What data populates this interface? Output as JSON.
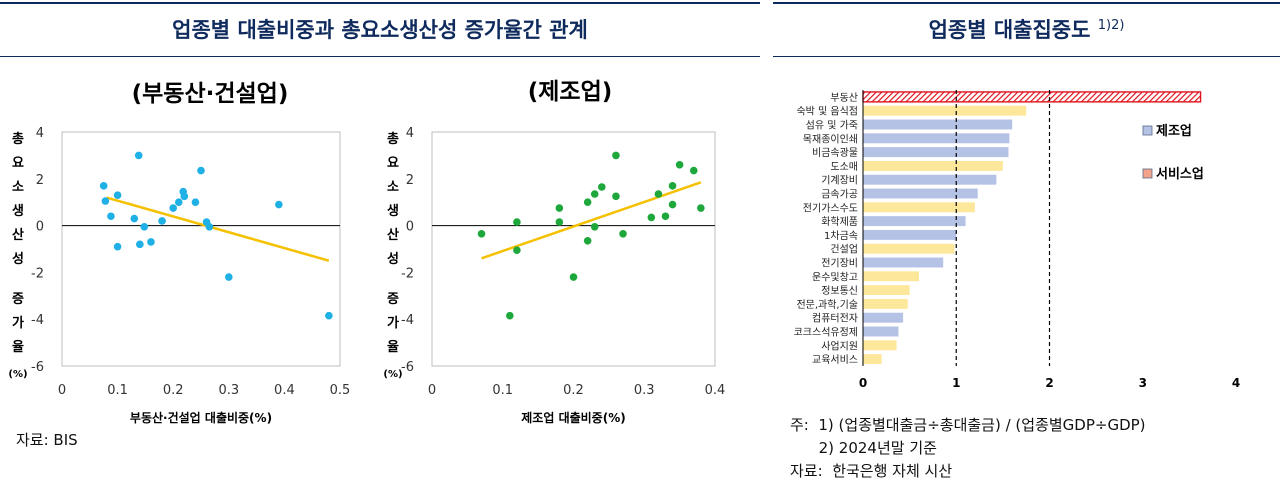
{
  "left": {
    "title": "업종별 대출비중과 총요소생산성 증가율간 관계",
    "source": "자료: BIS"
  },
  "right": {
    "title": "업종별 대출집중도",
    "title_sup": "1)2)",
    "notes": [
      "주:  1) (업종별대출금÷총대출금) / (업종별GDP÷GDP)",
      "      2) 2024년말 기준",
      "자료:  한국은행 자체 시산"
    ]
  },
  "chart_data": [
    {
      "type": "scatter",
      "title": "(부동산·건설업)",
      "xlabel": "부동산·건설업 대출비중(%)",
      "ylabel_chars": [
        "총",
        "요",
        "소",
        "생",
        "산",
        "성",
        "",
        "증",
        "가",
        "율"
      ],
      "ylabel_unit": "(%)",
      "xlim": [
        0,
        0.5
      ],
      "ylim": [
        -6,
        4
      ],
      "xticks": [
        0,
        0.1,
        0.2,
        0.3,
        0.4,
        0.5
      ],
      "xtick_labels": [
        "0",
        "0.1",
        "0.2",
        "0.3",
        "0.4",
        "0.5"
      ],
      "yticks": [
        4,
        2,
        0,
        -2,
        -4,
        -6
      ],
      "ytick_labels": [
        "4",
        "2",
        "0",
        "-2",
        "-4",
        "-6"
      ],
      "point_color": "#1fb0e6",
      "trend_color": "#f5c000",
      "trend": [
        [
          0.08,
          1.2
        ],
        [
          0.48,
          -1.5
        ]
      ],
      "points": [
        [
          0.075,
          1.7
        ],
        [
          0.078,
          1.05
        ],
        [
          0.088,
          0.4
        ],
        [
          0.1,
          1.3
        ],
        [
          0.1,
          -0.9
        ],
        [
          0.13,
          0.3
        ],
        [
          0.138,
          3.0
        ],
        [
          0.14,
          -0.8
        ],
        [
          0.148,
          -0.05
        ],
        [
          0.16,
          -0.7
        ],
        [
          0.18,
          0.2
        ],
        [
          0.2,
          0.75
        ],
        [
          0.21,
          1.0
        ],
        [
          0.218,
          1.45
        ],
        [
          0.22,
          1.25
        ],
        [
          0.24,
          1.0
        ],
        [
          0.25,
          2.35
        ],
        [
          0.26,
          0.15
        ],
        [
          0.265,
          -0.05
        ],
        [
          0.3,
          -2.2
        ],
        [
          0.39,
          0.9
        ],
        [
          0.48,
          -3.85
        ]
      ]
    },
    {
      "type": "scatter",
      "title": "(제조업)",
      "xlabel": "제조업 대출비중(%)",
      "ylabel_chars": [
        "총",
        "요",
        "소",
        "생",
        "산",
        "성",
        "",
        "증",
        "가",
        "율"
      ],
      "ylabel_unit": "(%)",
      "xlim": [
        0,
        0.4
      ],
      "ylim": [
        -6,
        4
      ],
      "xticks": [
        0,
        0.1,
        0.2,
        0.3,
        0.4
      ],
      "xtick_labels": [
        "0",
        "0.1",
        "0.2",
        "0.3",
        "0.4"
      ],
      "yticks": [
        4,
        2,
        0,
        -2,
        -4,
        -6
      ],
      "ytick_labels": [
        "4",
        "2",
        "0",
        "-2",
        "-4",
        "-6"
      ],
      "point_color": "#1ea83c",
      "trend_color": "#f5c000",
      "trend": [
        [
          0.07,
          -1.4
        ],
        [
          0.38,
          1.85
        ]
      ],
      "points": [
        [
          0.07,
          -0.35
        ],
        [
          0.11,
          -3.85
        ],
        [
          0.12,
          0.15
        ],
        [
          0.12,
          -1.05
        ],
        [
          0.18,
          0.75
        ],
        [
          0.18,
          0.15
        ],
        [
          0.2,
          -2.2
        ],
        [
          0.22,
          1.0
        ],
        [
          0.22,
          -0.65
        ],
        [
          0.23,
          1.35
        ],
        [
          0.24,
          1.65
        ],
        [
          0.23,
          -0.05
        ],
        [
          0.26,
          3.0
        ],
        [
          0.26,
          1.25
        ],
        [
          0.27,
          -0.35
        ],
        [
          0.31,
          0.35
        ],
        [
          0.32,
          1.35
        ],
        [
          0.33,
          0.4
        ],
        [
          0.34,
          1.7
        ],
        [
          0.34,
          0.9
        ],
        [
          0.35,
          2.6
        ],
        [
          0.37,
          2.35
        ],
        [
          0.38,
          0.75
        ]
      ]
    },
    {
      "type": "bar",
      "orientation": "horizontal",
      "categories": [
        "부동산",
        "숙박 및 음식점",
        "섬유 및 가죽",
        "목재종이인쇄",
        "비금속광물",
        "도소매",
        "기계장비",
        "금속가공",
        "전기가스수도",
        "화학제품",
        "1차금속",
        "건설업",
        "전기장비",
        "운수및창고",
        "정보통신",
        "전문,과학,기술",
        "컴퓨터전자",
        "코크스석유정제",
        "사업지원",
        "교육서비스"
      ],
      "values": [
        3.62,
        1.75,
        1.6,
        1.57,
        1.56,
        1.5,
        1.43,
        1.23,
        1.2,
        1.1,
        1.0,
        0.98,
        0.86,
        0.6,
        0.5,
        0.48,
        0.43,
        0.38,
        0.36,
        0.2
      ],
      "groups": [
        "서비스업",
        "서비스업",
        "제조업",
        "제조업",
        "제조업",
        "서비스업",
        "제조업",
        "제조업",
        "서비스업",
        "제조업",
        "제조업",
        "서비스업",
        "제조업",
        "서비스업",
        "서비스업",
        "서비스업",
        "제조업",
        "제조업",
        "서비스업",
        "서비스업"
      ],
      "highlight": [
        "부동산"
      ],
      "xlim": [
        0,
        4
      ],
      "xticks": [
        0,
        1,
        2,
        3,
        4
      ],
      "xtick_labels": [
        "0",
        "1",
        "2",
        "3",
        "4"
      ],
      "reference_lines": [
        1,
        2
      ],
      "legend": [
        {
          "name": "제조업",
          "color": "#b4c2e6"
        },
        {
          "name": "서비스업",
          "color": "#f3a38a"
        }
      ],
      "colors": {
        "manufacturing": "#b4c2e6",
        "service": "#fde79a",
        "highlight": "#e0141e"
      }
    }
  ]
}
